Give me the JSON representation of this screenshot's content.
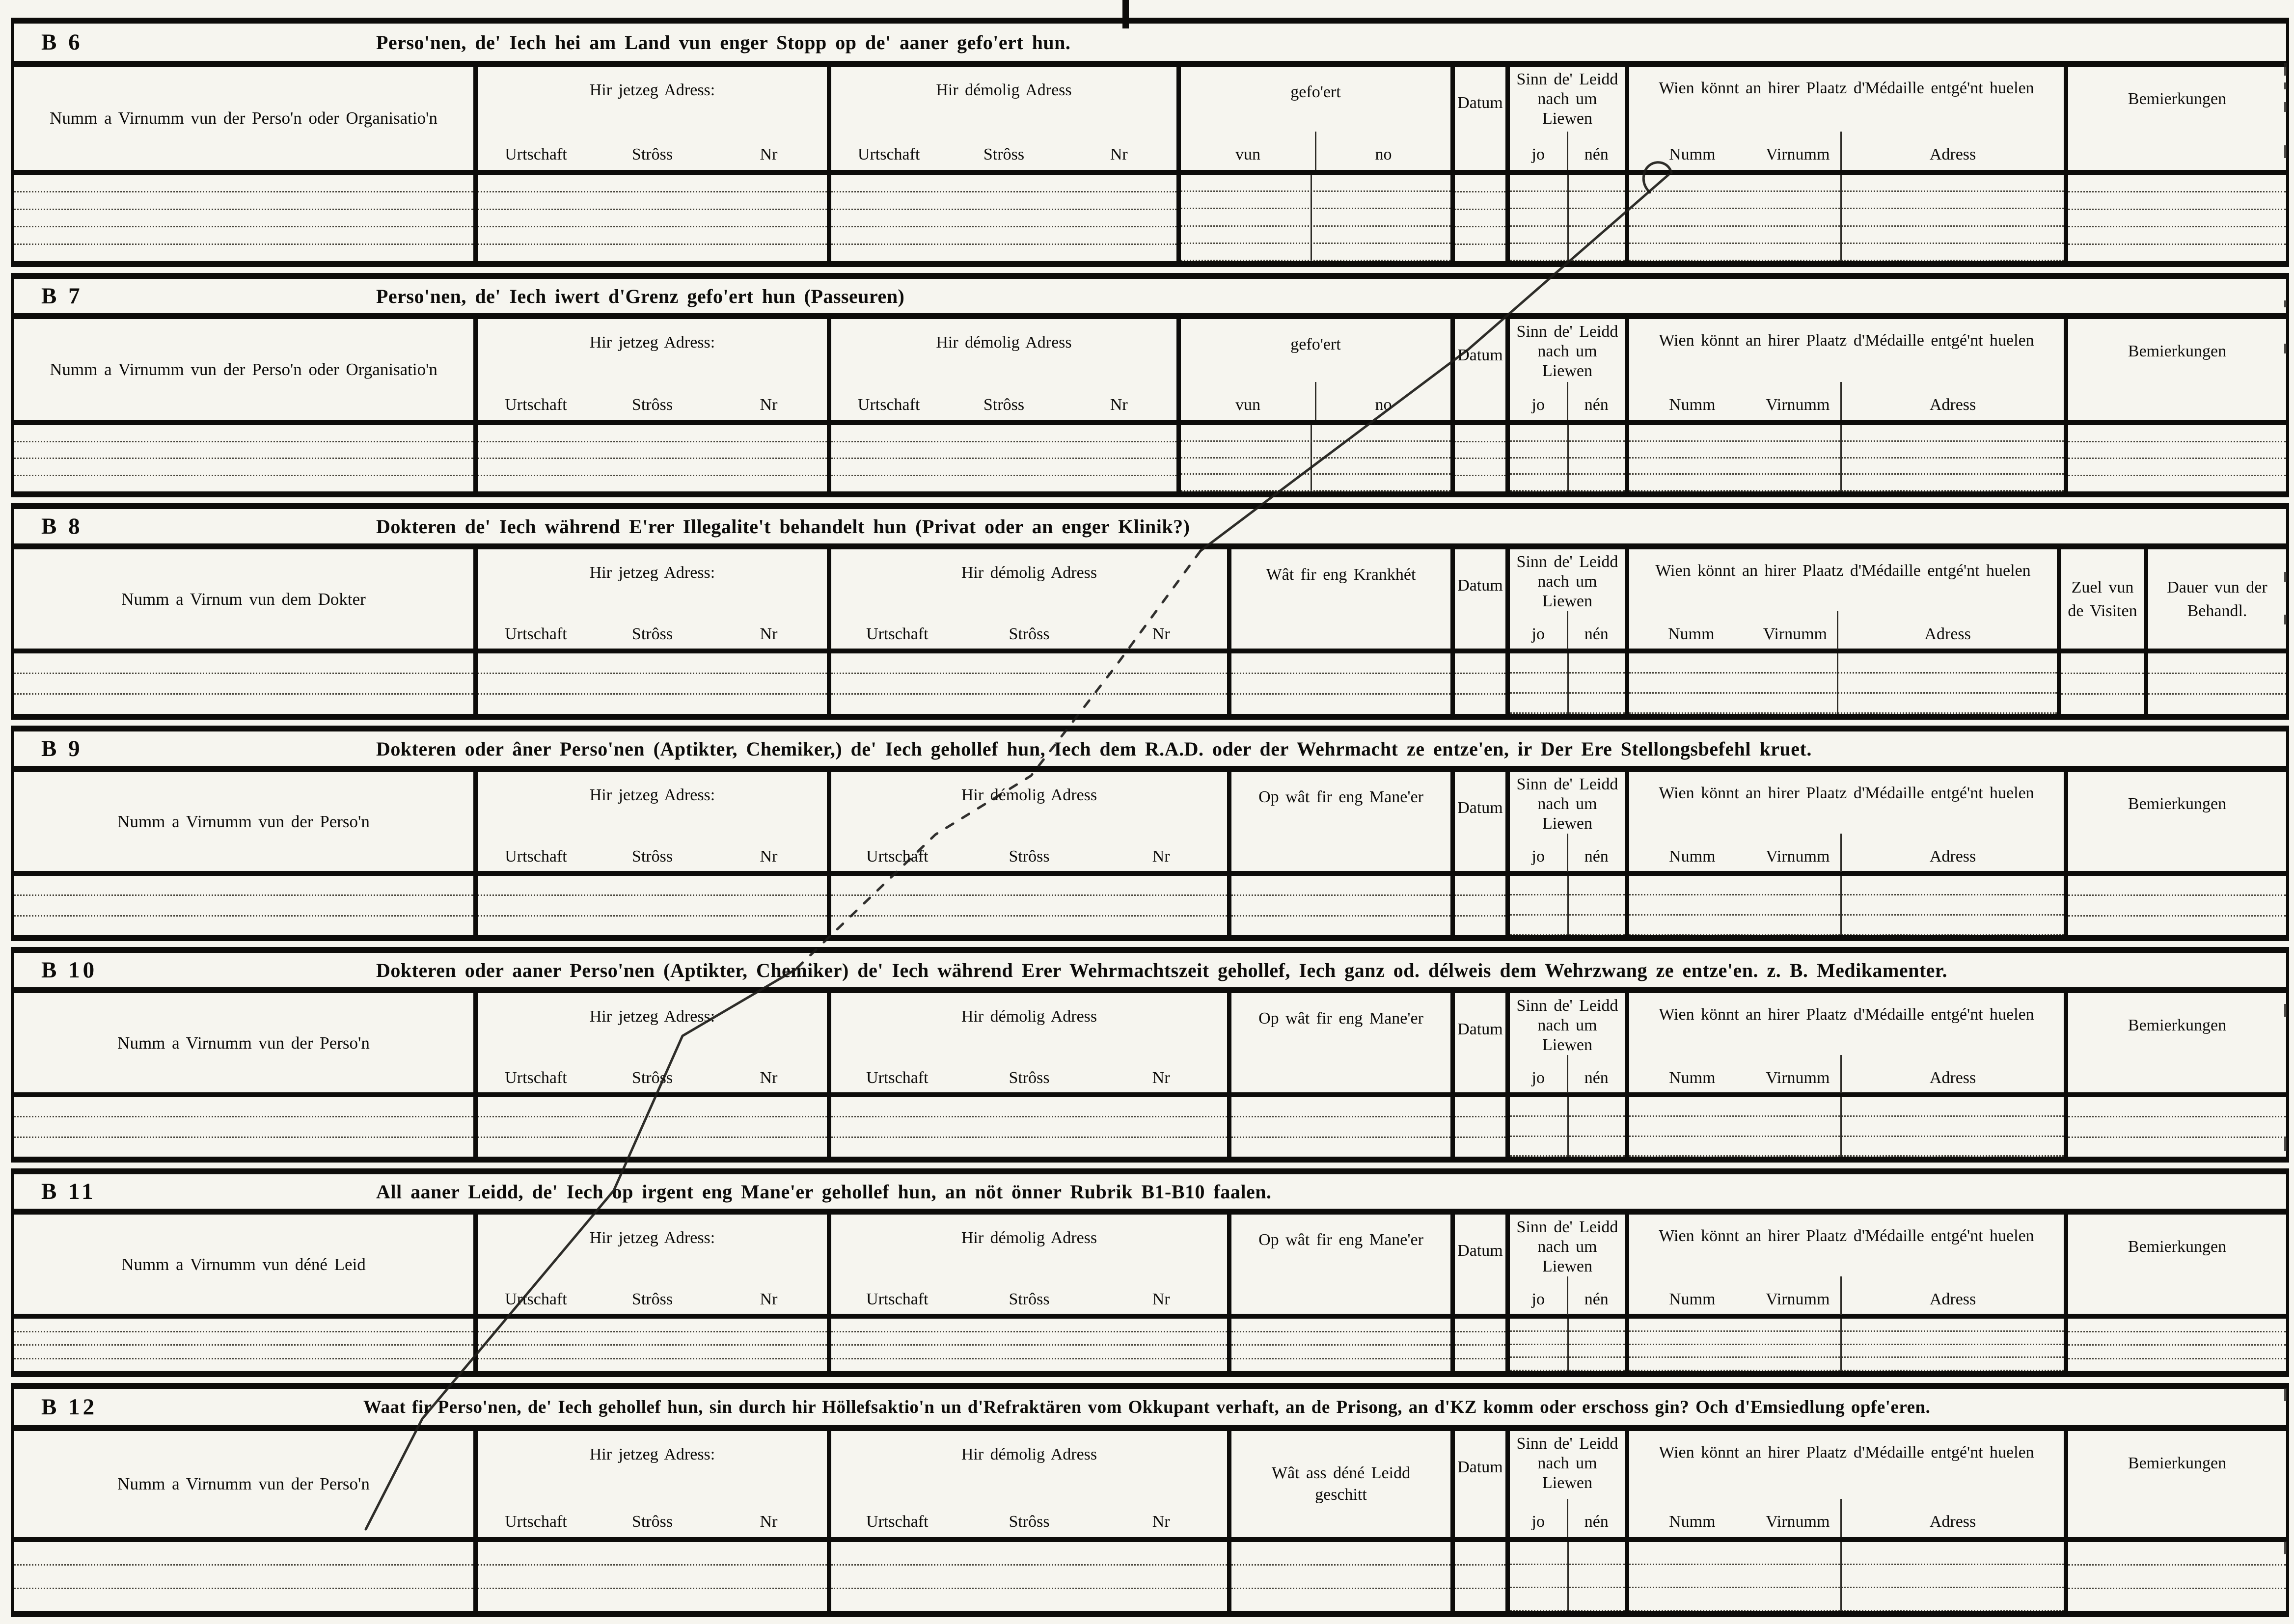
{
  "document": {
    "kind": "scanned printed form with ruled tables, blank (no entries filled in)",
    "ink_color": "#0d0c0a",
    "paper_color": "#f6f5ef",
    "annotations": {
      "pen_stroke": "long handwritten diagonal slash crossing the form from upper right to lower left, partly dashed in the middle",
      "top_tick": "short bold vertical ink mark at top center of the page",
      "edge_marks": "small scanner ink marks along the right page edge"
    },
    "sections": [
      {
        "key": "b6",
        "id": "B 6",
        "layout": "A",
        "ruled": 4,
        "title": "Perso'nen, de' Iech hei am Land vun enger Stopp op de' aaner gefo'ert hun.",
        "columns": [
          {
            "name": "person",
            "label": "Numm a Virnumm vun der Perso'n oder Organisatio'n"
          },
          {
            "name": "jetzeg",
            "label": "Hir jetzeg Adress:",
            "subs": [
              "Urtschaft",
              "Strôss",
              "Nr"
            ]
          },
          {
            "name": "demolig",
            "label": "Hir démolig Adress",
            "subs": [
              "Urtschaft",
              "Strôss",
              "Nr"
            ]
          },
          {
            "name": "mid",
            "label": "gefo'ert",
            "subs": [
              "vun",
              "no"
            ]
          },
          {
            "name": "datum",
            "label": "Datum"
          },
          {
            "name": "sinn",
            "label": "Sinn de' Leidd nach um Liewen",
            "subs": [
              "jo",
              "nén"
            ]
          },
          {
            "name": "medaille",
            "label": "Wien könnt an hirer Plaatz d'Médaille entgé'nt huelen",
            "subs": [
              "Numm",
              "Virnumm",
              "Adress"
            ]
          },
          {
            "name": "bem",
            "label": "Bemierkungen"
          }
        ]
      },
      {
        "key": "b7",
        "id": "B 7",
        "layout": "A",
        "ruled": 3,
        "title": "Perso'nen, de' Iech iwert d'Grenz gefo'ert hun (Passeuren)",
        "columns": [
          {
            "name": "person",
            "label": "Numm a Virnumm vun der Perso'n oder Organisatio'n"
          },
          {
            "name": "jetzeg",
            "label": "Hir jetzeg Adress:",
            "subs": [
              "Urtschaft",
              "Strôss",
              "Nr"
            ]
          },
          {
            "name": "demolig",
            "label": "Hir démolig Adress",
            "subs": [
              "Urtschaft",
              "Strôss",
              "Nr"
            ]
          },
          {
            "name": "mid",
            "label": "gefo'ert",
            "subs": [
              "vun",
              "no"
            ]
          },
          {
            "name": "datum",
            "label": "Datum"
          },
          {
            "name": "sinn",
            "label": "Sinn de' Leidd nach um Liewen",
            "subs": [
              "jo",
              "nén"
            ]
          },
          {
            "name": "medaille",
            "label": "Wien könnt an hirer Plaatz d'Médaille entgé'nt huelen",
            "subs": [
              "Numm",
              "Virnumm",
              "Adress"
            ]
          },
          {
            "name": "bem",
            "label": "Bemierkungen"
          }
        ]
      },
      {
        "key": "b8",
        "id": "B 8",
        "layout": "C",
        "ruled": 2,
        "title": "Dokteren de' Iech während E'rer Illegalite't behandelt hun (Privat oder an enger Klinik?)",
        "columns": [
          {
            "name": "person",
            "label": "Numm a Virnum vun dem Dokter"
          },
          {
            "name": "jetzeg",
            "label": "Hir jetzeg Adress:",
            "subs": [
              "Urtschaft",
              "Strôss",
              "Nr"
            ]
          },
          {
            "name": "demolig",
            "label": "Hir démolig Adress",
            "subs": [
              "Urtschaft",
              "Strôss",
              "Nr"
            ]
          },
          {
            "name": "mid",
            "label": "Wât fir eng Krankhét"
          },
          {
            "name": "datum",
            "label": "Datum"
          },
          {
            "name": "sinn",
            "label": "Sinn de' Leidd nach um Liewen",
            "subs": [
              "jo",
              "nén"
            ]
          },
          {
            "name": "medaille",
            "label": "Wien könnt an hirer Plaatz d'Médaille entgé'nt huelen",
            "subs": [
              "Numm",
              "Virnumm",
              "Adress"
            ]
          },
          {
            "name": "zuel",
            "label": "Zuel vun de Visiten"
          },
          {
            "name": "dauer",
            "label": "Dauer vun der Behandl."
          }
        ]
      },
      {
        "key": "b9",
        "id": "B 9",
        "layout": "B",
        "ruled": 2,
        "title": "Dokteren oder âner Perso'nen (Aptikter, Chemiker,) de' Iech gehollef hun, Iech dem R.A.D. oder der Wehrmacht ze entze'en, ir Der Ere Stellongsbefehl kruet.",
        "columns": [
          {
            "name": "person",
            "label": "Numm a Virnumm vun der Perso'n"
          },
          {
            "name": "jetzeg",
            "label": "Hir jetzeg Adress:",
            "subs": [
              "Urtschaft",
              "Strôss",
              "Nr"
            ]
          },
          {
            "name": "demolig",
            "label": "Hir démolig Adress",
            "subs": [
              "Urtschaft",
              "Strôss",
              "Nr"
            ]
          },
          {
            "name": "mid",
            "label": "Op wât fir eng Mane'er"
          },
          {
            "name": "datum",
            "label": "Datum"
          },
          {
            "name": "sinn",
            "label": "Sinn de' Leidd nach um Liewen",
            "subs": [
              "jo",
              "nén"
            ]
          },
          {
            "name": "medaille",
            "label": "Wien könnt an hirer Plaatz d'Médaille entgé'nt huelen",
            "subs": [
              "Numm",
              "Virnumm",
              "Adress"
            ]
          },
          {
            "name": "bem",
            "label": "Bemierkungen"
          }
        ]
      },
      {
        "key": "b10",
        "id": "B 10",
        "layout": "B",
        "ruled": 2,
        "title": "Dokteren oder aaner Perso'nen (Aptikter, Chemiker) de' Iech während Erer Wehrmachtszeit gehollef, Iech ganz od. délweis dem Wehrzwang ze entze'en. z. B. Medikamenter.",
        "columns": [
          {
            "name": "person",
            "label": "Numm a Virnumm vun der Perso'n"
          },
          {
            "name": "jetzeg",
            "label": "Hir jetzeg Adress:",
            "subs": [
              "Urtschaft",
              "Strôss",
              "Nr"
            ]
          },
          {
            "name": "demolig",
            "label": "Hir démolig Adress",
            "subs": [
              "Urtschaft",
              "Strôss",
              "Nr"
            ]
          },
          {
            "name": "mid",
            "label": "Op wât fir eng Mane'er"
          },
          {
            "name": "datum",
            "label": "Datum"
          },
          {
            "name": "sinn",
            "label": "Sinn de' Leidd nach um Liewen",
            "subs": [
              "jo",
              "nén"
            ]
          },
          {
            "name": "medaille",
            "label": "Wien könnt an hirer Plaatz d'Médaille entgé'nt huelen",
            "subs": [
              "Numm",
              "Virnumm",
              "Adress"
            ]
          },
          {
            "name": "bem",
            "label": "Bemierkungen"
          }
        ]
      },
      {
        "key": "b11",
        "id": "B 11",
        "layout": "B",
        "ruled": 3,
        "title": "All aaner Leidd, de' Iech op irgent eng Mane'er gehollef hun, an nöt önner Rubrik B1-B10 faalen.",
        "columns": [
          {
            "name": "person",
            "label": "Numm a Virnumm vun déné Leid"
          },
          {
            "name": "jetzeg",
            "label": "Hir jetzeg Adress:",
            "subs": [
              "Urtschaft",
              "Strôss",
              "Nr"
            ]
          },
          {
            "name": "demolig",
            "label": "Hir démolig Adress",
            "subs": [
              "Urtschaft",
              "Strôss",
              "Nr"
            ]
          },
          {
            "name": "mid",
            "label": "Op wât fir eng Mane'er"
          },
          {
            "name": "datum",
            "label": "Datum"
          },
          {
            "name": "sinn",
            "label": "Sinn de' Leidd nach um Liewen",
            "subs": [
              "jo",
              "nén"
            ]
          },
          {
            "name": "medaille",
            "label": "Wien könnt an hirer Plaatz d'Médaille entgé'nt huelen",
            "subs": [
              "Numm",
              "Virnumm",
              "Adress"
            ]
          },
          {
            "name": "bem",
            "label": "Bemierkungen"
          }
        ]
      },
      {
        "key": "b12",
        "id": "B 12",
        "layout": "B",
        "ruled": 2,
        "title": "Waat fir Perso'nen, de' Iech gehollef hun, sin durch hir Höllefsaktio'n un d'Refraktären vom Okkupant verhaft, an de Prisong, an d'KZ komm oder erschoss gin? Och d'Emsiedlung opfe'eren.",
        "columns": [
          {
            "name": "person",
            "label": "Numm a Virnumm vun der Perso'n"
          },
          {
            "name": "jetzeg",
            "label": "Hir jetzeg Adress:",
            "subs": [
              "Urtschaft",
              "Strôss",
              "Nr"
            ]
          },
          {
            "name": "demolig",
            "label": "Hir démolig Adress",
            "subs": [
              "Urtschaft",
              "Strôss",
              "Nr"
            ]
          },
          {
            "name": "mid",
            "label": "Wât ass déné Leidd geschitt"
          },
          {
            "name": "datum",
            "label": "Datum"
          },
          {
            "name": "sinn",
            "label": "Sinn de' Leidd nach um Liewen",
            "subs": [
              "jo",
              "nén"
            ]
          },
          {
            "name": "medaille",
            "label": "Wien könnt an hirer Plaatz d'Médaille entgé'nt huelen",
            "subs": [
              "Numm",
              "Virnumm",
              "Adress"
            ]
          },
          {
            "name": "bem",
            "label": "Bemierkungen"
          }
        ]
      }
    ]
  }
}
